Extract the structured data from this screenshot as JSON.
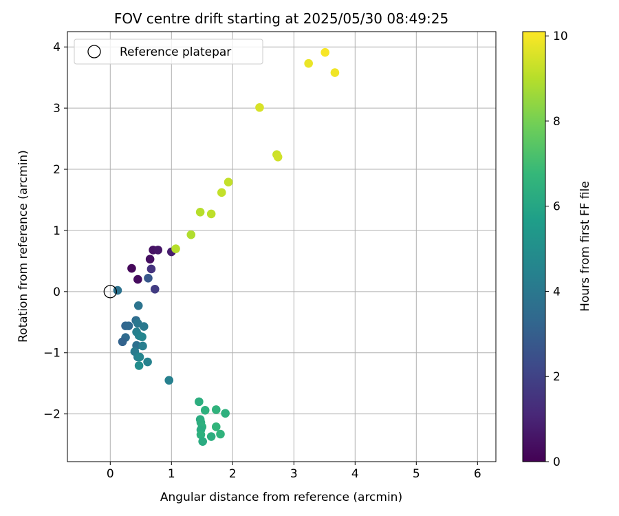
{
  "chart_data": {
    "type": "scatter",
    "title": "FOV centre drift starting at 2025/05/30 08:49:25",
    "xlabel": "Angular distance from reference (arcmin)",
    "ylabel": "Rotation from reference (arcmin)",
    "xlim": [
      -0.7,
      6.3
    ],
    "ylim": [
      -2.78,
      4.25
    ],
    "xticks": [
      0,
      1,
      2,
      3,
      4,
      5,
      6
    ],
    "yticks": [
      -2,
      -1,
      0,
      1,
      2,
      3,
      4
    ],
    "grid": true,
    "legend": {
      "position": "top-left",
      "entries": [
        {
          "label": "Reference platepar",
          "marker": "open-circle"
        }
      ]
    },
    "reference_point": {
      "x": 0,
      "y": 0
    },
    "colorbar": {
      "label": "Hours from first FF file",
      "colormap": "viridis",
      "range": [
        0,
        10.1
      ],
      "ticks": [
        0,
        2,
        4,
        6,
        8,
        10
      ]
    },
    "points": [
      {
        "x": 0.35,
        "y": 0.38,
        "hours": 0.2
      },
      {
        "x": 0.45,
        "y": 0.2,
        "hours": 0.3
      },
      {
        "x": 0.65,
        "y": 0.53,
        "hours": 0.4
      },
      {
        "x": 0.7,
        "y": 0.68,
        "hours": 0.5
      },
      {
        "x": 0.78,
        "y": 0.68,
        "hours": 0.6
      },
      {
        "x": 1.0,
        "y": 0.65,
        "hours": 0.8
      },
      {
        "x": 0.67,
        "y": 0.37,
        "hours": 1.5
      },
      {
        "x": 0.73,
        "y": 0.04,
        "hours": 1.8
      },
      {
        "x": 0.62,
        "y": 0.22,
        "hours": 2.8
      },
      {
        "x": 0.12,
        "y": 0.02,
        "hours": 3.8
      },
      {
        "x": 0.46,
        "y": -0.23,
        "hours": 3.9
      },
      {
        "x": 0.25,
        "y": -0.56,
        "hours": 3.3
      },
      {
        "x": 0.3,
        "y": -0.56,
        "hours": 3.4
      },
      {
        "x": 0.42,
        "y": -0.47,
        "hours": 3.6
      },
      {
        "x": 0.45,
        "y": -0.52,
        "hours": 4.0
      },
      {
        "x": 0.55,
        "y": -0.57,
        "hours": 4.1
      },
      {
        "x": 0.43,
        "y": -0.66,
        "hours": 4.4
      },
      {
        "x": 0.47,
        "y": -0.72,
        "hours": 4.5
      },
      {
        "x": 0.52,
        "y": -0.74,
        "hours": 4.6
      },
      {
        "x": 0.25,
        "y": -0.75,
        "hours": 3.5
      },
      {
        "x": 0.2,
        "y": -0.82,
        "hours": 3.2
      },
      {
        "x": 0.43,
        "y": -0.88,
        "hours": 3.7
      },
      {
        "x": 0.53,
        "y": -0.89,
        "hours": 4.3
      },
      {
        "x": 0.4,
        "y": -0.98,
        "hours": 4.2
      },
      {
        "x": 0.45,
        "y": -1.07,
        "hours": 4.3
      },
      {
        "x": 0.48,
        "y": -1.07,
        "hours": 4.6
      },
      {
        "x": 0.61,
        "y": -1.15,
        "hours": 4.5
      },
      {
        "x": 0.47,
        "y": -1.21,
        "hours": 4.9
      },
      {
        "x": 0.96,
        "y": -1.45,
        "hours": 4.4
      },
      {
        "x": 1.45,
        "y": -1.8,
        "hours": 6.3
      },
      {
        "x": 1.73,
        "y": -1.93,
        "hours": 6.5
      },
      {
        "x": 1.55,
        "y": -1.94,
        "hours": 6.4
      },
      {
        "x": 1.88,
        "y": -1.99,
        "hours": 6.4
      },
      {
        "x": 1.47,
        "y": -2.09,
        "hours": 6.2
      },
      {
        "x": 1.48,
        "y": -2.14,
        "hours": 6.3
      },
      {
        "x": 1.5,
        "y": -2.21,
        "hours": 6.4
      },
      {
        "x": 1.73,
        "y": -2.21,
        "hours": 6.6
      },
      {
        "x": 1.48,
        "y": -2.26,
        "hours": 6.2
      },
      {
        "x": 1.8,
        "y": -2.33,
        "hours": 6.5
      },
      {
        "x": 1.48,
        "y": -2.34,
        "hours": 6.4
      },
      {
        "x": 1.65,
        "y": -2.37,
        "hours": 6.3
      },
      {
        "x": 1.51,
        "y": -2.45,
        "hours": 6.2
      },
      {
        "x": 1.07,
        "y": 0.7,
        "hours": 9.0
      },
      {
        "x": 1.32,
        "y": 0.93,
        "hours": 8.9
      },
      {
        "x": 1.47,
        "y": 1.3,
        "hours": 9.0
      },
      {
        "x": 1.65,
        "y": 1.27,
        "hours": 9.1
      },
      {
        "x": 1.82,
        "y": 1.62,
        "hours": 9.2
      },
      {
        "x": 1.93,
        "y": 1.79,
        "hours": 9.2
      },
      {
        "x": 2.44,
        "y": 3.01,
        "hours": 9.5
      },
      {
        "x": 2.72,
        "y": 2.24,
        "hours": 9.3
      },
      {
        "x": 2.74,
        "y": 2.2,
        "hours": 9.4
      },
      {
        "x": 3.24,
        "y": 3.73,
        "hours": 9.8
      },
      {
        "x": 3.51,
        "y": 3.91,
        "hours": 10.0
      },
      {
        "x": 3.67,
        "y": 3.58,
        "hours": 9.9
      }
    ]
  }
}
